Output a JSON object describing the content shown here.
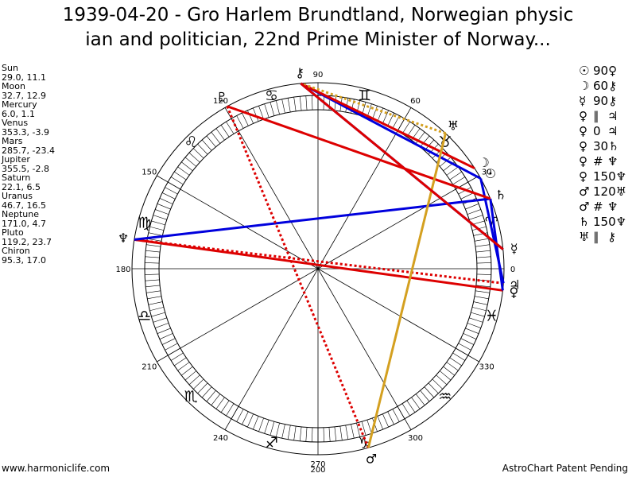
{
  "title_line1": "1939-04-20 - Gro Harlem Brundtland, Norwegian physic",
  "title_line2": "ian and politician, 22nd Prime Minister of Norway...",
  "planets": [
    {
      "name": "Sun",
      "coords": "29.0, 11.1"
    },
    {
      "name": "Moon",
      "coords": "32.7, 12.9"
    },
    {
      "name": "Mercury",
      "coords": "6.0, 1.1"
    },
    {
      "name": "Venus",
      "coords": "353.3, -3.9"
    },
    {
      "name": "Mars",
      "coords": "285.7, -23.4"
    },
    {
      "name": "Jupiter",
      "coords": "355.5, -2.8"
    },
    {
      "name": "Saturn",
      "coords": "22.1, 6.5"
    },
    {
      "name": "Uranus",
      "coords": "46.7, 16.5"
    },
    {
      "name": "Neptune",
      "coords": "171.0, 4.7"
    },
    {
      "name": "Pluto",
      "coords": "119.2, 23.7"
    },
    {
      "name": "Chiron",
      "coords": "95.3, 17.0"
    }
  ],
  "aspects": [
    {
      "p1": "☉",
      "angle": "90",
      "p2": "♀"
    },
    {
      "p1": "☽",
      "angle": "60",
      "p2": "⚷"
    },
    {
      "p1": "☿",
      "angle": "90",
      "p2": "⚷"
    },
    {
      "p1": "♀",
      "angle": "∥",
      "p2": "♃"
    },
    {
      "p1": "♀",
      "angle": "0",
      "p2": "♃"
    },
    {
      "p1": "♀",
      "angle": "30",
      "p2": "♄"
    },
    {
      "p1": "♀",
      "angle": "#",
      "p2": "♆"
    },
    {
      "p1": "♀",
      "angle": "150",
      "p2": "♆"
    },
    {
      "p1": "♂",
      "angle": "120",
      "p2": "♅"
    },
    {
      "p1": "♂",
      "angle": "#",
      "p2": "♆"
    },
    {
      "p1": "♄",
      "angle": "150",
      "p2": "♆"
    },
    {
      "p1": "♅",
      "angle": "∥",
      "p2": "⚷"
    }
  ],
  "footer_left": "www.harmoniclife.com",
  "footer_right": "AstroChart Patent Pending",
  "chart_data": {
    "type": "astrology-wheel",
    "degree_labels": [
      "0",
      "30",
      "60",
      "90",
      "120",
      "150",
      "180",
      "210",
      "240",
      "270",
      "300",
      "330"
    ],
    "extra_label": "200",
    "signs": [
      "♈",
      "♉",
      "♊",
      "♋",
      "♌",
      "♍",
      "♎",
      "♏",
      "♐",
      "♑",
      "♒",
      "♓"
    ],
    "sign_angles": [
      15,
      45,
      75,
      105,
      135,
      165,
      195,
      225,
      255,
      285,
      315,
      345
    ],
    "bodies": [
      {
        "glyph": "☉",
        "longitude": 29.0
      },
      {
        "glyph": "☽",
        "longitude": 32.7
      },
      {
        "glyph": "☿",
        "longitude": 6.0
      },
      {
        "glyph": "♀",
        "longitude": 353.3
      },
      {
        "glyph": "♂",
        "longitude": 285.7
      },
      {
        "glyph": "♃",
        "longitude": 355.5
      },
      {
        "glyph": "♄",
        "longitude": 22.1
      },
      {
        "glyph": "♅",
        "longitude": 46.7
      },
      {
        "glyph": "♆",
        "longitude": 171.0
      },
      {
        "glyph": "♇",
        "longitude": 119.2
      },
      {
        "glyph": "⚷",
        "longitude": 95.3
      }
    ],
    "aspect_lines": [
      {
        "from": 29.0,
        "to": 95.3,
        "color": "#0000dd",
        "style": "solid"
      },
      {
        "from": 32.7,
        "to": 95.3,
        "color": "#dd0000",
        "style": "solid"
      },
      {
        "from": 6.0,
        "to": 95.3,
        "color": "#0000dd",
        "style": "solid"
      },
      {
        "from": 353.3,
        "to": 171.0,
        "color": "#dd0000",
        "style": "solid"
      },
      {
        "from": 355.5,
        "to": 171.0,
        "color": "#dd0000",
        "style": "dotted"
      },
      {
        "from": 22.1,
        "to": 171.0,
        "color": "#0000dd",
        "style": "solid"
      },
      {
        "from": 22.1,
        "to": 353.3,
        "color": "#0000dd",
        "style": "solid"
      },
      {
        "from": 29.0,
        "to": 355.5,
        "color": "#0000dd",
        "style": "solid"
      },
      {
        "from": 119.2,
        "to": 22.1,
        "color": "#dd0000",
        "style": "solid"
      },
      {
        "from": 119.2,
        "to": 285.7,
        "color": "#dd0000",
        "style": "dotted"
      },
      {
        "from": 285.7,
        "to": 46.7,
        "color": "#d4a020",
        "style": "solid"
      },
      {
        "from": 46.7,
        "to": 95.3,
        "color": "#d4a020",
        "style": "dotted"
      },
      {
        "from": 95.3,
        "to": 6.0,
        "color": "#dd0000",
        "style": "solid"
      }
    ]
  }
}
